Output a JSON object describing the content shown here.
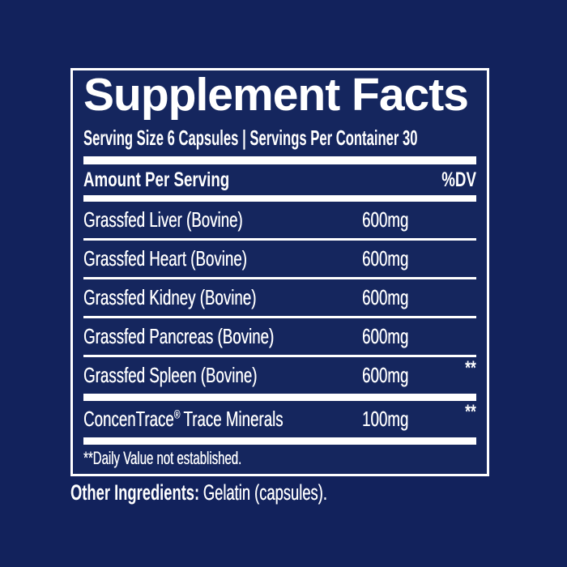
{
  "colors": {
    "background_outer": "#12225c",
    "background_inner": "#15265e",
    "border_and_text": "#ffffff"
  },
  "panel": {
    "title": "Supplement Facts",
    "serving_line": "Serving Size 6 Capsules | Servings Per Container 30",
    "header": {
      "left": "Amount Per Serving",
      "right": "%DV"
    },
    "rows": [
      {
        "name": "Grassfed Liver (Bovine)",
        "amount": "600mg",
        "dv": ""
      },
      {
        "name": "Grassfed Heart (Bovine)",
        "amount": "600mg",
        "dv": ""
      },
      {
        "name": "Grassfed Kidney (Bovine)",
        "amount": "600mg",
        "dv": ""
      },
      {
        "name": "Grassfed Pancreas (Bovine)",
        "amount": "600mg",
        "dv": ""
      },
      {
        "name": "Grassfed Spleen (Bovine)",
        "amount": "600mg",
        "dv": "**"
      }
    ],
    "trademark_row": {
      "brand": "ConcenTrace",
      "reg_mark": "®",
      "rest": "Trace Minerals",
      "amount": "100mg",
      "dv": "**"
    },
    "footnote": "**Daily Value not established."
  },
  "other_ingredients": {
    "label": "Other Ingredients:",
    "value": "Gelatin (capsules)."
  }
}
